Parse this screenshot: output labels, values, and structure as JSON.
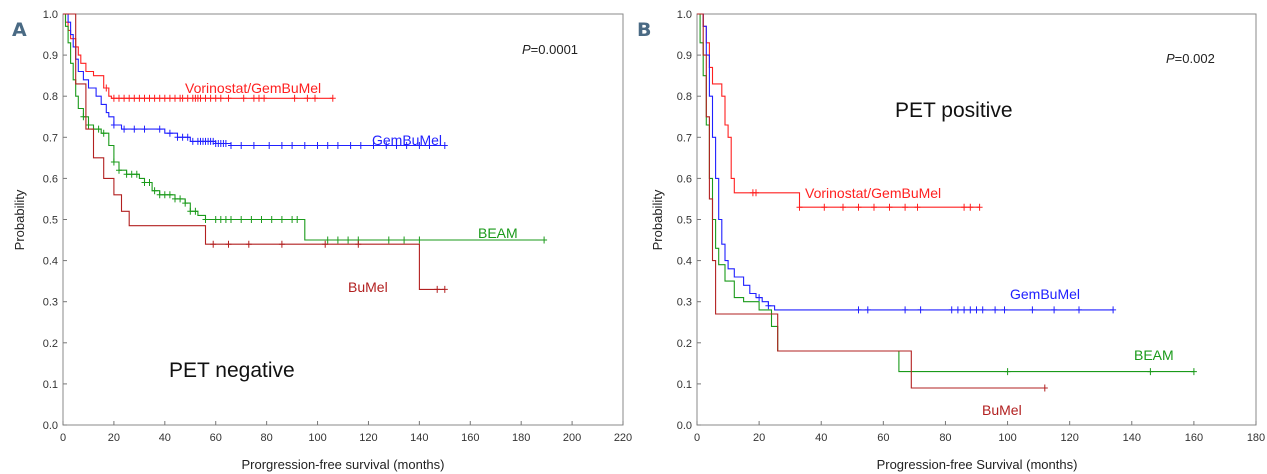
{
  "chart_data": [
    {
      "type": "line",
      "panel": "A",
      "annotation": "PET negative",
      "p_prefix": "P",
      "p_value": "=0.0001",
      "xlabel": "Prorgression-free survival (months)",
      "ylabel": "Probability",
      "xlim": [
        0,
        220
      ],
      "ylim": [
        0,
        1.0
      ],
      "xticks": [
        "0",
        "20",
        "40",
        "60",
        "80",
        "100",
        "120",
        "140",
        "160",
        "180",
        "200",
        "220"
      ],
      "yticks": [
        "0.0",
        "0.1",
        "0.2",
        "0.3",
        "0.4",
        "0.5",
        "0.6",
        "0.7",
        "0.8",
        "0.9",
        "1.0"
      ],
      "series": [
        {
          "name": "Vorinostat/GemBuMel",
          "color": "#ff2020",
          "steps": [
            [
              0,
              1.0
            ],
            [
              1,
              0.98
            ],
            [
              2,
              0.96
            ],
            [
              3,
              0.94
            ],
            [
              5,
              0.92
            ],
            [
              6,
              0.9
            ],
            [
              7,
              0.88
            ],
            [
              9,
              0.86
            ],
            [
              12,
              0.85
            ],
            [
              16,
              0.82
            ],
            [
              18,
              0.8
            ],
            [
              19,
              0.795
            ],
            [
              106,
              0.795
            ]
          ],
          "censors": [
            17,
            20,
            22,
            24,
            26,
            28,
            30,
            32,
            34,
            36,
            38,
            40,
            42,
            44,
            46,
            47,
            49,
            51,
            52,
            53,
            54,
            56,
            58,
            60,
            62,
            65,
            71,
            75,
            77,
            79,
            91,
            96,
            99,
            106
          ]
        },
        {
          "name": "GemBuMel",
          "color": "#2020ff",
          "steps": [
            [
              0,
              1.0
            ],
            [
              2,
              0.98
            ],
            [
              3,
              0.95
            ],
            [
              4,
              0.92
            ],
            [
              5,
              0.89
            ],
            [
              6,
              0.86
            ],
            [
              8,
              0.84
            ],
            [
              10,
              0.82
            ],
            [
              13,
              0.8
            ],
            [
              15,
              0.78
            ],
            [
              17,
              0.76
            ],
            [
              18,
              0.75
            ],
            [
              20,
              0.73
            ],
            [
              23,
              0.72
            ],
            [
              40,
              0.71
            ],
            [
              45,
              0.7
            ],
            [
              50,
              0.69
            ],
            [
              55,
              0.69
            ],
            [
              60,
              0.685
            ],
            [
              66,
              0.68
            ],
            [
              150,
              0.68
            ]
          ],
          "censors": [
            20,
            24,
            28,
            32,
            38,
            42,
            45,
            47,
            49,
            51,
            53,
            54,
            55,
            56,
            57,
            58,
            59,
            60,
            61,
            62,
            63,
            64,
            66,
            70,
            75,
            81,
            86,
            90,
            95,
            100,
            104,
            108,
            113,
            117,
            122,
            127,
            131,
            135,
            140,
            144,
            150
          ]
        },
        {
          "name": "BEAM",
          "color": "#1a9a1a",
          "steps": [
            [
              0,
              1.0
            ],
            [
              1,
              0.97
            ],
            [
              2,
              0.93
            ],
            [
              3,
              0.88
            ],
            [
              4,
              0.84
            ],
            [
              5,
              0.8
            ],
            [
              6,
              0.77
            ],
            [
              8,
              0.75
            ],
            [
              10,
              0.73
            ],
            [
              12,
              0.72
            ],
            [
              15,
              0.71
            ],
            [
              18,
              0.68
            ],
            [
              20,
              0.64
            ],
            [
              22,
              0.62
            ],
            [
              25,
              0.61
            ],
            [
              30,
              0.6
            ],
            [
              32,
              0.59
            ],
            [
              35,
              0.57
            ],
            [
              38,
              0.56
            ],
            [
              44,
              0.55
            ],
            [
              48,
              0.54
            ],
            [
              50,
              0.52
            ],
            [
              53,
              0.51
            ],
            [
              56,
              0.5
            ],
            [
              94,
              0.5
            ],
            [
              95,
              0.45
            ],
            [
              189,
              0.45
            ]
          ],
          "censors": [
            8,
            10,
            12,
            14,
            16,
            20,
            22,
            25,
            27,
            29,
            32,
            34,
            36,
            38,
            40,
            42,
            44,
            46,
            48,
            50,
            52,
            56,
            60,
            62,
            64,
            66,
            70,
            74,
            78,
            82,
            86,
            90,
            92,
            104,
            108,
            112,
            116,
            128,
            134,
            140,
            189
          ]
        },
        {
          "name": "BuMel",
          "color": "#b22020",
          "steps": [
            [
              0,
              1.0
            ],
            [
              5,
              0.83
            ],
            [
              9,
              0.72
            ],
            [
              12,
              0.65
            ],
            [
              16,
              0.6
            ],
            [
              20,
              0.56
            ],
            [
              23,
              0.52
            ],
            [
              26,
              0.485
            ],
            [
              54,
              0.485
            ],
            [
              56,
              0.44
            ],
            [
              139,
              0.44
            ],
            [
              140,
              0.33
            ],
            [
              150,
              0.33
            ]
          ],
          "censors": [
            59,
            65,
            73,
            86,
            103,
            116,
            147,
            150
          ]
        }
      ],
      "label_positions": [
        "above",
        "right",
        "right",
        "right"
      ]
    },
    {
      "type": "line",
      "panel": "B",
      "annotation": "PET positive",
      "p_prefix": "P",
      "p_value": "=0.002",
      "xlabel": "Progression-free Survival (months)",
      "ylabel": "Probability",
      "xlim": [
        0,
        180
      ],
      "ylim": [
        0,
        1.0
      ],
      "xticks": [
        "0",
        "20",
        "40",
        "60",
        "80",
        "100",
        "120",
        "140",
        "160",
        "180"
      ],
      "yticks": [
        "0.0",
        "0.1",
        "0.2",
        "0.3",
        "0.4",
        "0.5",
        "0.6",
        "0.7",
        "0.8",
        "0.9",
        "1.0"
      ],
      "series": [
        {
          "name": "Vorinostat/GemBuMel",
          "color": "#ff2020",
          "steps": [
            [
              0,
              1.0
            ],
            [
              2,
              0.97
            ],
            [
              3,
              0.93
            ],
            [
              4,
              0.87
            ],
            [
              5,
              0.83
            ],
            [
              8,
              0.8
            ],
            [
              9,
              0.73
            ],
            [
              10,
              0.7
            ],
            [
              11,
              0.6
            ],
            [
              12,
              0.565
            ],
            [
              32,
              0.565
            ],
            [
              33,
              0.53
            ],
            [
              91,
              0.53
            ]
          ],
          "censors": [
            18,
            19,
            33,
            41,
            47,
            52,
            57,
            62,
            67,
            71,
            86,
            88,
            91
          ]
        },
        {
          "name": "GemBuMel",
          "color": "#2020ff",
          "steps": [
            [
              0,
              1.0
            ],
            [
              2,
              0.97
            ],
            [
              3,
              0.9
            ],
            [
              4,
              0.8
            ],
            [
              5,
              0.7
            ],
            [
              6,
              0.6
            ],
            [
              7,
              0.5
            ],
            [
              8,
              0.44
            ],
            [
              9,
              0.4
            ],
            [
              10,
              0.38
            ],
            [
              12,
              0.36
            ],
            [
              15,
              0.34
            ],
            [
              17,
              0.32
            ],
            [
              19,
              0.31
            ],
            [
              21,
              0.3
            ],
            [
              23,
              0.29
            ],
            [
              25,
              0.28
            ],
            [
              134,
              0.28
            ]
          ],
          "censors": [
            20,
            23,
            52,
            55,
            67,
            72,
            82,
            84,
            86,
            88,
            90,
            92,
            96,
            99,
            108,
            115,
            123,
            134
          ]
        },
        {
          "name": "BEAM",
          "color": "#1a9a1a",
          "steps": [
            [
              0,
              1.0
            ],
            [
              1,
              0.93
            ],
            [
              2,
              0.85
            ],
            [
              3,
              0.73
            ],
            [
              4,
              0.6
            ],
            [
              5,
              0.5
            ],
            [
              6,
              0.43
            ],
            [
              7,
              0.39
            ],
            [
              9,
              0.35
            ],
            [
              12,
              0.31
            ],
            [
              15,
              0.3
            ],
            [
              20,
              0.28
            ],
            [
              24,
              0.24
            ],
            [
              26,
              0.18
            ],
            [
              64,
              0.18
            ],
            [
              65,
              0.13
            ],
            [
              160,
              0.13
            ]
          ],
          "censors": [
            100,
            146,
            160
          ]
        },
        {
          "name": "BuMel",
          "color": "#b22020",
          "steps": [
            [
              0,
              1.0
            ],
            [
              2,
              0.9
            ],
            [
              3,
              0.75
            ],
            [
              4,
              0.55
            ],
            [
              5,
              0.4
            ],
            [
              6,
              0.27
            ],
            [
              25,
              0.27
            ],
            [
              26,
              0.18
            ],
            [
              68,
              0.18
            ],
            [
              69,
              0.09
            ],
            [
              112,
              0.09
            ]
          ],
          "censors": [
            112
          ]
        }
      ]
    }
  ]
}
